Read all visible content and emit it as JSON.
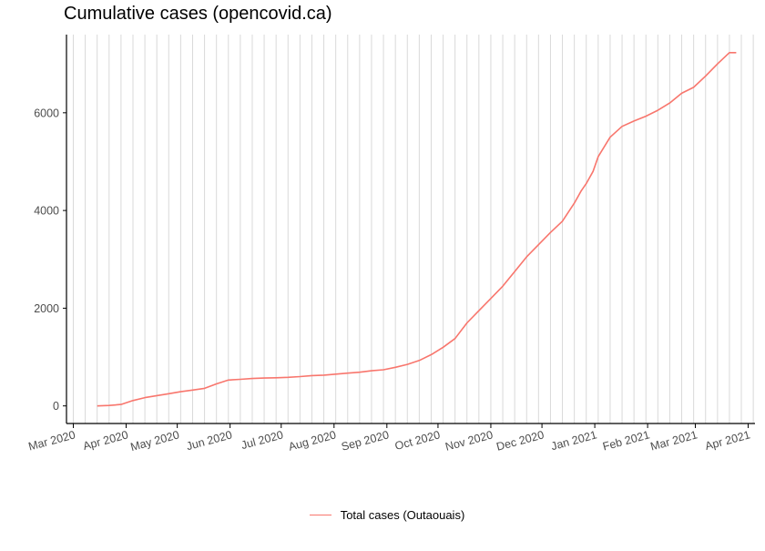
{
  "chart_data": {
    "type": "line",
    "title": "Cumulative cases (opencovid.ca)",
    "xlabel": "",
    "ylabel": "",
    "x_tick_labels": [
      "Mar 2020",
      "Apr 2020",
      "May 2020",
      "Jun 2020",
      "Jul 2020",
      "Aug 2020",
      "Sep 2020",
      "Oct 2020",
      "Nov 2020",
      "Dec 2020",
      "Jan 2021",
      "Feb 2021",
      "Mar 2021",
      "Apr 2021"
    ],
    "y_ticks": [
      0,
      2000,
      4000,
      6000
    ],
    "y_tick_labels": [
      "0",
      "2000",
      "4000",
      "6000"
    ],
    "xlim": [
      "2020-02-26",
      "2021-04-05"
    ],
    "ylim": [
      -360,
      7600
    ],
    "grid": "vertical gridlines (weekly)",
    "legend_position": "bottom",
    "series": [
      {
        "name": "Total cases (Outaouais)",
        "color": "#F8766D",
        "x": [
          "2020-03-15",
          "2020-03-22",
          "2020-03-29",
          "2020-04-05",
          "2020-04-12",
          "2020-04-19",
          "2020-04-26",
          "2020-05-03",
          "2020-05-10",
          "2020-05-17",
          "2020-05-24",
          "2020-05-31",
          "2020-06-07",
          "2020-06-14",
          "2020-06-21",
          "2020-06-28",
          "2020-07-05",
          "2020-07-12",
          "2020-07-19",
          "2020-07-26",
          "2020-08-02",
          "2020-08-09",
          "2020-08-16",
          "2020-08-23",
          "2020-08-30",
          "2020-09-06",
          "2020-09-13",
          "2020-09-20",
          "2020-09-27",
          "2020-10-04",
          "2020-10-11",
          "2020-10-18",
          "2020-10-25",
          "2020-11-01",
          "2020-11-08",
          "2020-11-15",
          "2020-11-22",
          "2020-11-29",
          "2020-12-06",
          "2020-12-13",
          "2020-12-20",
          "2020-12-24",
          "2020-12-27",
          "2020-12-31",
          "2021-01-03",
          "2021-01-10",
          "2021-01-17",
          "2021-01-24",
          "2021-01-31",
          "2021-02-07",
          "2021-02-14",
          "2021-02-21",
          "2021-02-28",
          "2021-03-07",
          "2021-03-14",
          "2021-03-21",
          "2021-03-25"
        ],
        "y": [
          0,
          10,
          30,
          110,
          170,
          210,
          250,
          290,
          325,
          360,
          450,
          530,
          545,
          560,
          570,
          575,
          585,
          600,
          620,
          630,
          650,
          670,
          690,
          720,
          740,
          790,
          850,
          930,
          1050,
          1200,
          1380,
          1700,
          1950,
          2200,
          2450,
          2750,
          3050,
          3300,
          3550,
          3780,
          4150,
          4400,
          4550,
          4800,
          5100,
          5500,
          5720,
          5830,
          5930,
          6050,
          6200,
          6400,
          6520,
          6750,
          7000,
          7230,
          7230
        ]
      }
    ]
  }
}
